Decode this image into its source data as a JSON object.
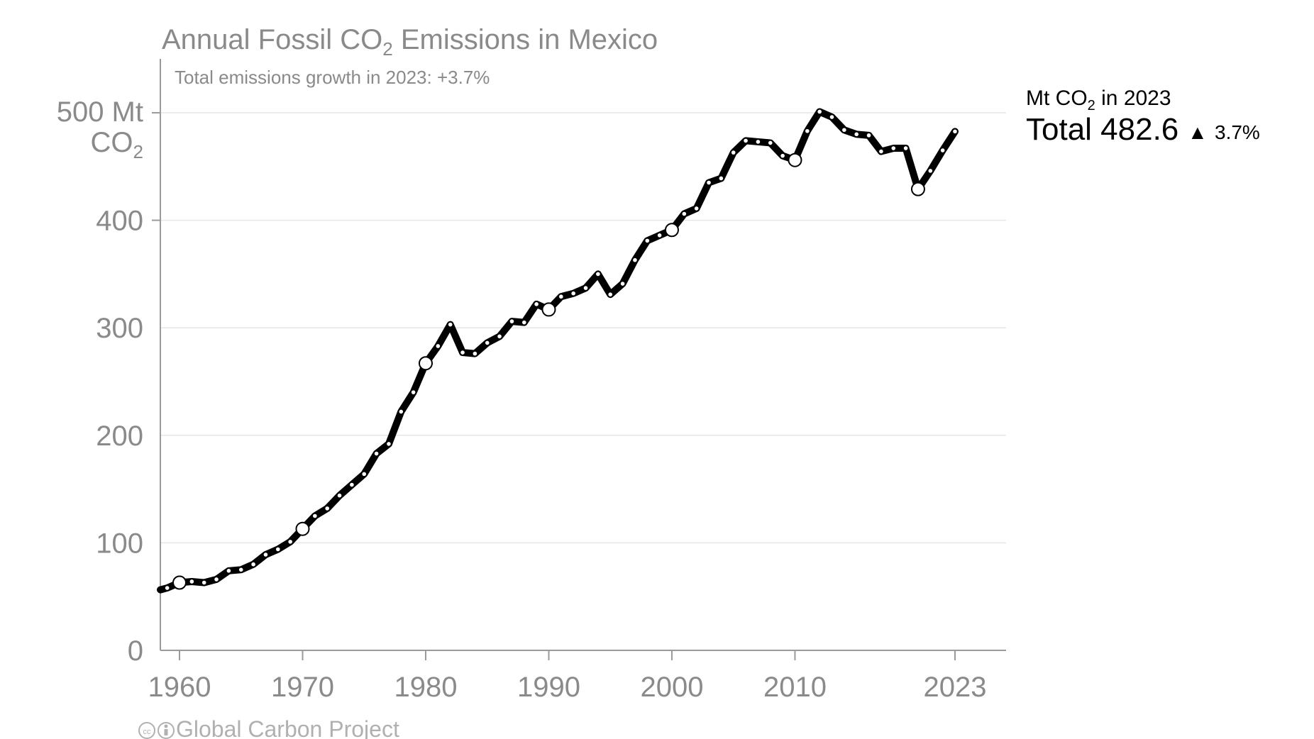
{
  "chart_data": {
    "type": "line",
    "title_parts": [
      "Annual Fossil CO",
      "2",
      " Emissions in Mexico"
    ],
    "subtitle": "Total emissions growth in 2023: +3.7%",
    "y_unit_line1": "500 Mt",
    "y_unit_line2_parts": [
      "CO",
      "2"
    ],
    "xlim": [
      1958.5,
      2027.5
    ],
    "ylim": [
      0,
      550
    ],
    "y_ticks": [
      0,
      100,
      200,
      300,
      400,
      500
    ],
    "y_tick_labels": [
      "0",
      "100",
      "200",
      "300",
      "400",
      ""
    ],
    "x_ticks": [
      1960,
      1970,
      1980,
      1990,
      2000,
      2010,
      2023
    ],
    "x_tick_labels": [
      "1960",
      "1970",
      "1980",
      "1990",
      "2000",
      "2010",
      "2023"
    ],
    "grid": true,
    "series": [
      {
        "x": [
          1958,
          1959,
          1960,
          1961,
          1962,
          1963,
          1964,
          1965,
          1966,
          1967,
          1968,
          1969,
          1970,
          1971,
          1972,
          1973,
          1974,
          1975,
          1976,
          1977,
          1978,
          1979,
          1980,
          1981,
          1982,
          1983,
          1984,
          1985,
          1986,
          1987,
          1988,
          1989,
          1990,
          1991,
          1992,
          1993,
          1994,
          1995,
          1996,
          1997,
          1998,
          1999,
          2000,
          2001,
          2002,
          2003,
          2004,
          2005,
          2006,
          2007,
          2008,
          2009,
          2010,
          2011,
          2012,
          2013,
          2014,
          2015,
          2016,
          2017,
          2018,
          2019,
          2020,
          2021,
          2022,
          2023
        ],
        "values": [
          55,
          58,
          63,
          64,
          63,
          66,
          74,
          75,
          80,
          89,
          94,
          101,
          113,
          125,
          132,
          144,
          154,
          164,
          183,
          192,
          222,
          240,
          267,
          283,
          303,
          277,
          276,
          286,
          292,
          306,
          305,
          322,
          317,
          329,
          332,
          337,
          350,
          331,
          341,
          363,
          381,
          386,
          391,
          406,
          411,
          435,
          439,
          463,
          474,
          473,
          472,
          460,
          456,
          483,
          501,
          496,
          484,
          480,
          479,
          464,
          467,
          467,
          429,
          446,
          465,
          482.6
        ]
      }
    ],
    "highlighted_years": [
      1960,
      1970,
      1980,
      1990,
      2000,
      2010,
      2020
    ],
    "side_label_parts": [
      "Mt CO",
      "2",
      " in 2023"
    ],
    "side_total_label": "Total 482.6",
    "side_growth_symbol": "▲",
    "side_growth_value": "3.7%",
    "credit": "Global Carbon Project"
  }
}
